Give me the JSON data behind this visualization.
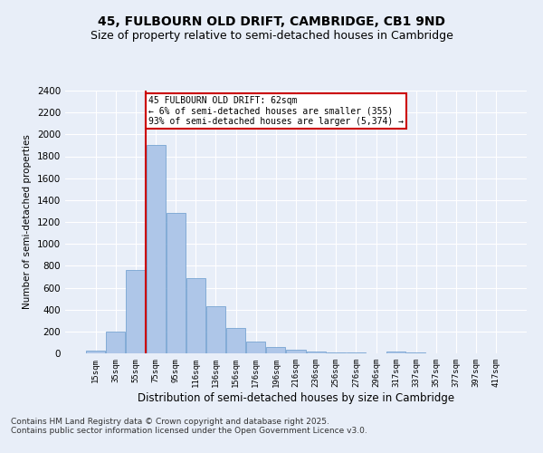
{
  "title": "45, FULBOURN OLD DRIFT, CAMBRIDGE, CB1 9ND",
  "subtitle": "Size of property relative to semi-detached houses in Cambridge",
  "xlabel": "Distribution of semi-detached houses by size in Cambridge",
  "ylabel": "Number of semi-detached properties",
  "categories": [
    "15sqm",
    "35sqm",
    "55sqm",
    "75sqm",
    "95sqm",
    "116sqm",
    "136sqm",
    "156sqm",
    "176sqm",
    "196sqm",
    "216sqm",
    "236sqm",
    "256sqm",
    "276sqm",
    "296sqm",
    "317sqm",
    "337sqm",
    "357sqm",
    "377sqm",
    "397sqm",
    "417sqm"
  ],
  "values": [
    25,
    200,
    760,
    1900,
    1280,
    690,
    430,
    230,
    110,
    60,
    35,
    20,
    10,
    5,
    3,
    15,
    8,
    4,
    2,
    1,
    1
  ],
  "bar_color": "#aec6e8",
  "bar_edge_color": "#6699cc",
  "ylim": [
    0,
    2400
  ],
  "yticks": [
    0,
    200,
    400,
    600,
    800,
    1000,
    1200,
    1400,
    1600,
    1800,
    2000,
    2200,
    2400
  ],
  "vline_x": 2.5,
  "annotation_title": "45 FULBOURN OLD DRIFT: 62sqm",
  "annotation_line1": "← 6% of semi-detached houses are smaller (355)",
  "annotation_line2": "93% of semi-detached houses are larger (5,374) →",
  "footer_line1": "Contains HM Land Registry data © Crown copyright and database right 2025.",
  "footer_line2": "Contains public sector information licensed under the Open Government Licence v3.0.",
  "background_color": "#e8eef8",
  "plot_background": "#e8eef8",
  "grid_color": "#ffffff",
  "title_fontsize": 10,
  "subtitle_fontsize": 9,
  "annotation_box_color": "#ffffff",
  "annotation_box_edge": "#cc0000",
  "vline_color": "#cc0000",
  "footer_fontsize": 6.5
}
